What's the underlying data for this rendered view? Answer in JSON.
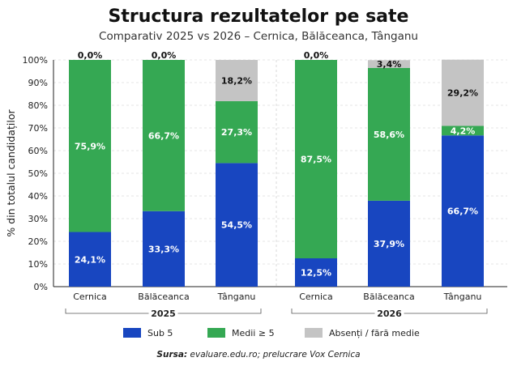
{
  "chart_data": {
    "type": "bar",
    "stacked": true,
    "title": "Structura rezultatelor pe sate",
    "subtitle": "Comparativ 2025 vs 2026 – Cernica, Bălăceanca, Tânganu",
    "ylabel": "% din totalul candidaților",
    "ylim": [
      0,
      100
    ],
    "yticks": [
      "0%",
      "10%",
      "20%",
      "30%",
      "40%",
      "50%",
      "60%",
      "70%",
      "80%",
      "90%",
      "100%"
    ],
    "categories": [
      "Cernica",
      "Bălăceanca",
      "Tânganu",
      "Cernica",
      "Bălăceanca",
      "Tânganu"
    ],
    "groups": [
      {
        "label": "2025",
        "categories": [
          0,
          1,
          2
        ]
      },
      {
        "label": "2026",
        "categories": [
          3,
          4,
          5
        ]
      }
    ],
    "series": [
      {
        "name": "Sub 5",
        "color": "#1846c0",
        "values": [
          24.1,
          33.3,
          54.5,
          12.5,
          37.9,
          66.7
        ],
        "labels": [
          "24,1%",
          "33,3%",
          "54,5%",
          "12,5%",
          "37,9%",
          "66,7%"
        ]
      },
      {
        "name": "Medii ≥ 5",
        "color": "#35a853",
        "values": [
          75.9,
          66.7,
          27.3,
          87.5,
          58.6,
          4.2
        ],
        "labels": [
          "75,9%",
          "66,7%",
          "27,3%",
          "87,5%",
          "58,6%",
          "4,2%"
        ]
      },
      {
        "name": "Absenți / fără medie",
        "color": "#c4c4c4",
        "values": [
          0.0,
          0.0,
          18.2,
          0.0,
          3.4,
          29.2
        ],
        "labels": [
          "0,0%",
          "0,0%",
          "18,2%",
          "0,0%",
          "3,4%",
          "29,2%"
        ]
      }
    ],
    "grid": true,
    "legend_position": "bottom",
    "source_label": "Sursa:",
    "source_text": "evaluare.edu.ro; prelucrare Vox Cernica"
  }
}
